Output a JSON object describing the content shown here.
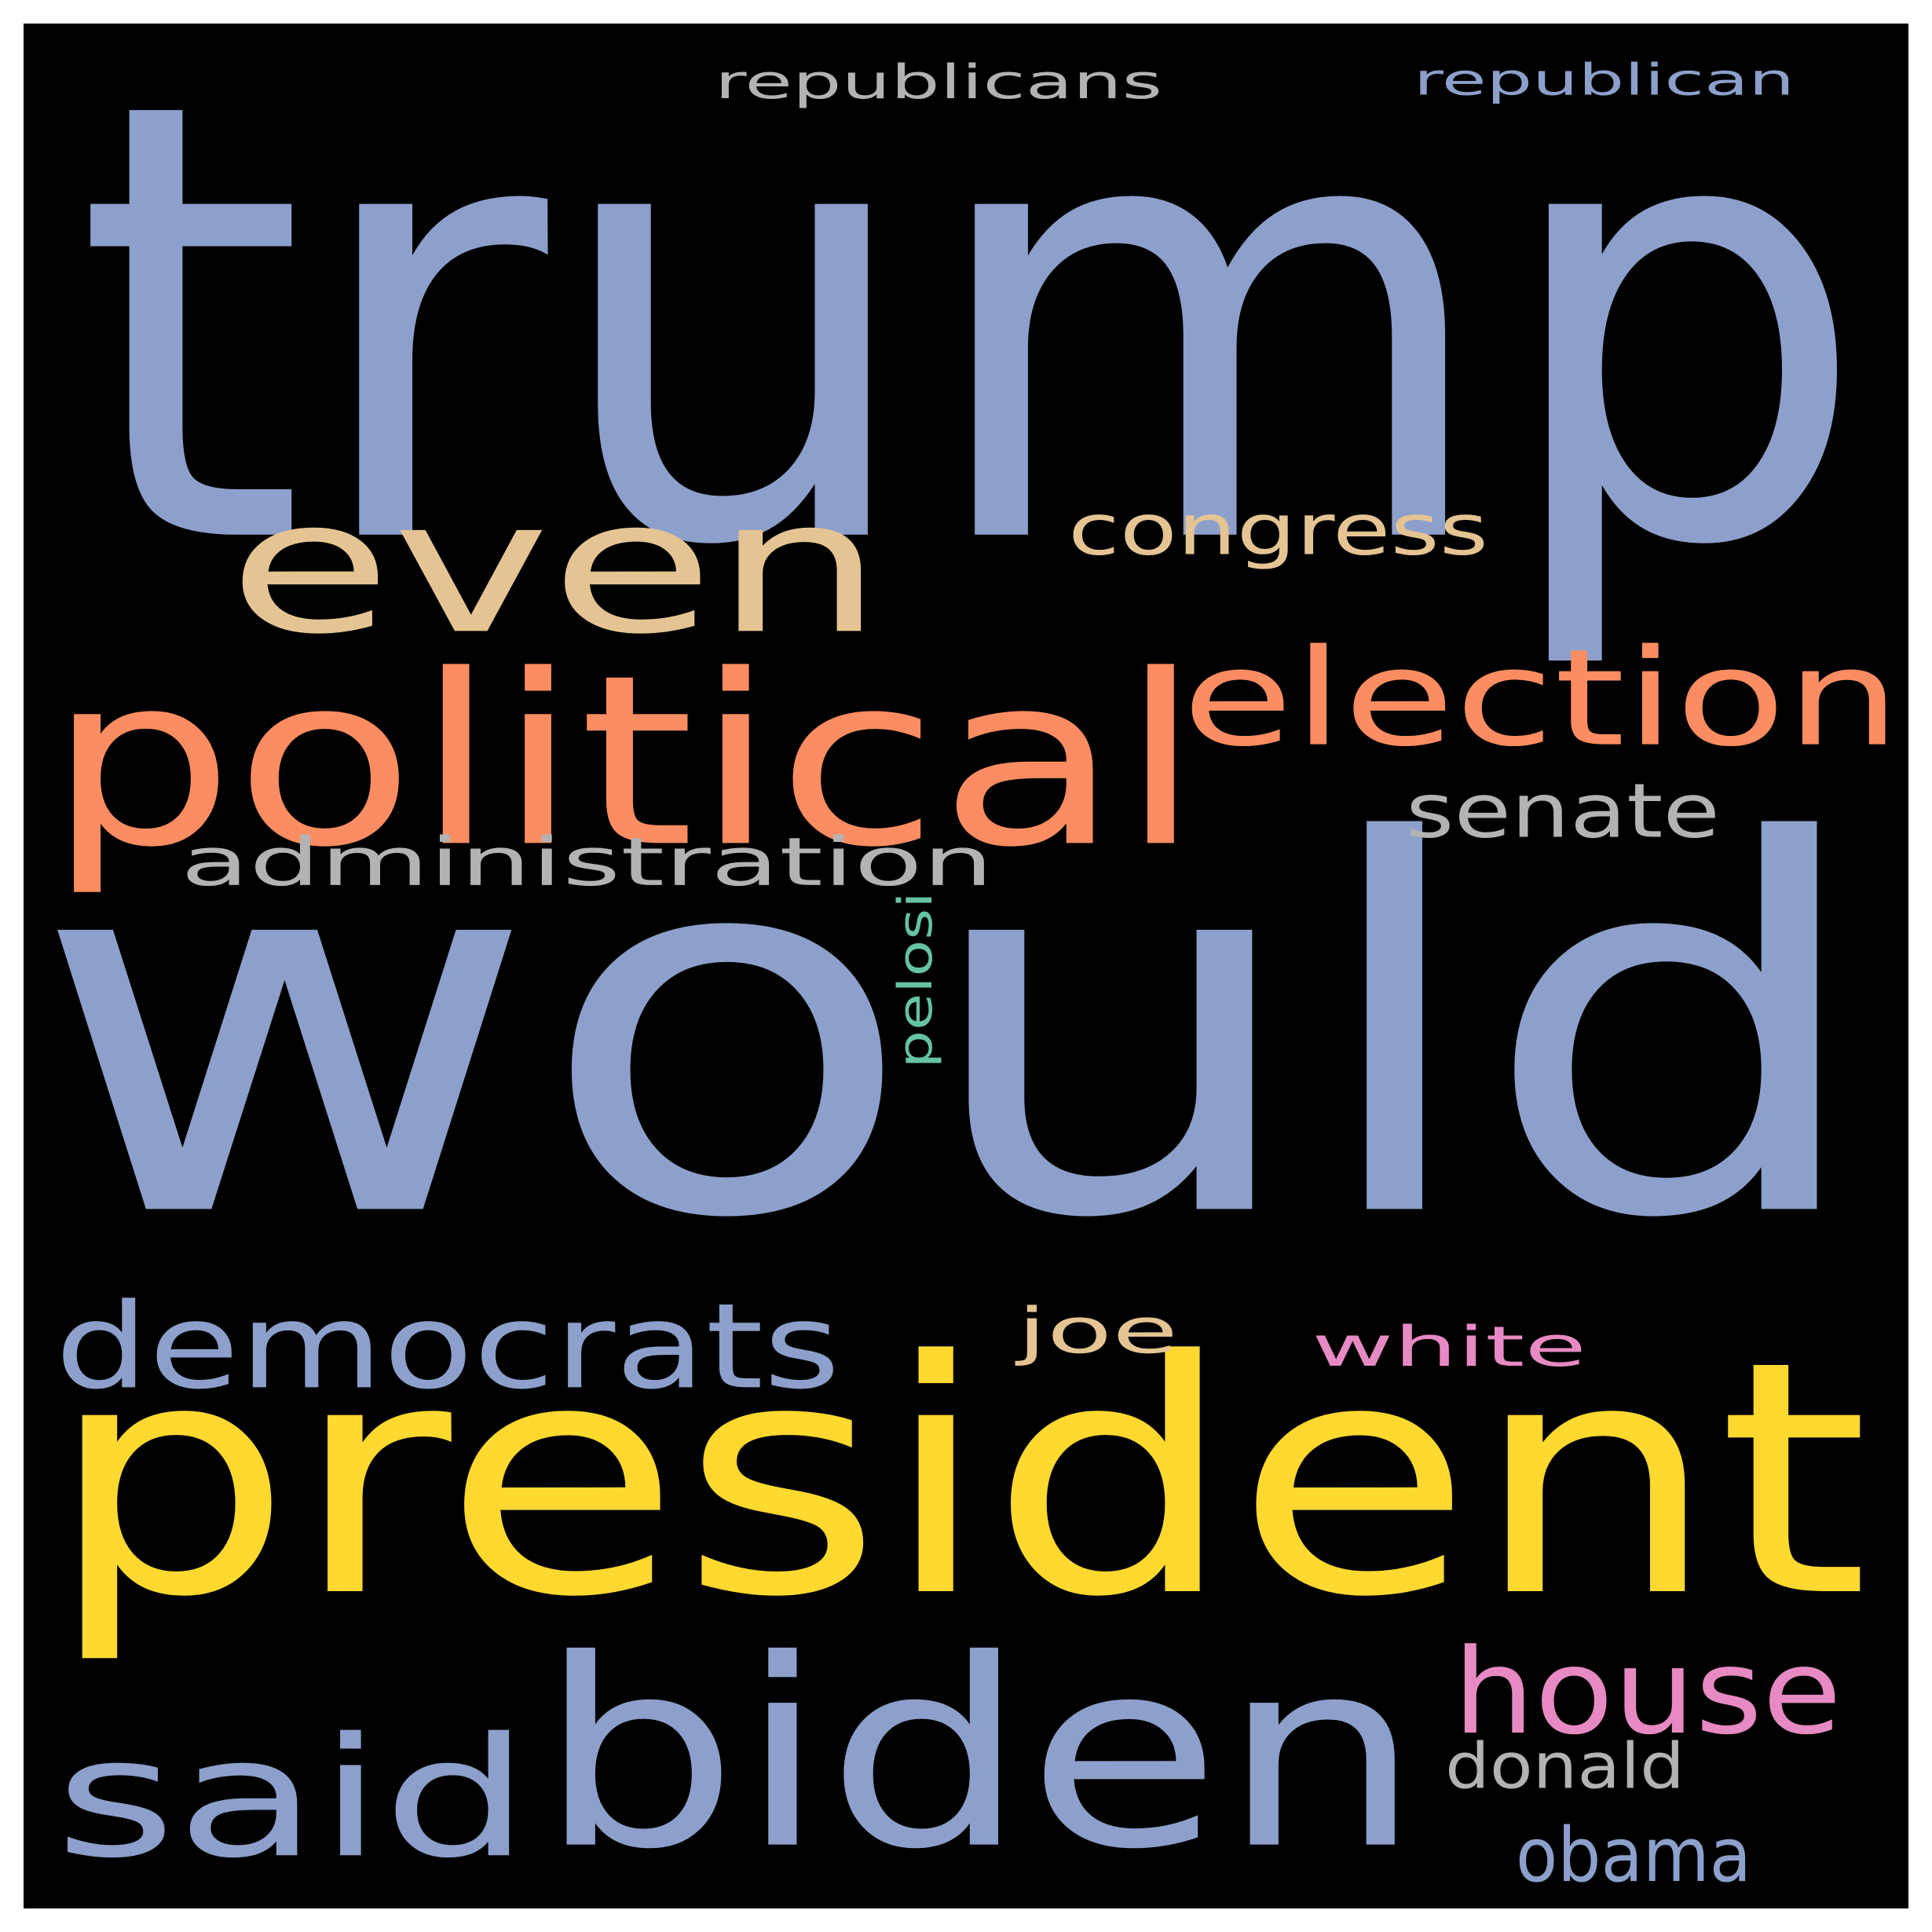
{
  "cloud": {
    "background": "#000000",
    "words": {
      "trump": {
        "text": "trump",
        "color": "#8da0cb"
      },
      "would": {
        "text": "would",
        "color": "#8da0cb"
      },
      "president": {
        "text": "president",
        "color": "#ffd92f"
      },
      "biden": {
        "text": "biden",
        "color": "#8da0cb"
      },
      "said": {
        "text": "said",
        "color": "#8da0cb"
      },
      "political": {
        "text": "political",
        "color": "#fc8d62"
      },
      "even": {
        "text": "even",
        "color": "#e5c494"
      },
      "election": {
        "text": "election",
        "color": "#fc8d62"
      },
      "democrats": {
        "text": "democrats",
        "color": "#8da0cb"
      },
      "house": {
        "text": "house",
        "color": "#e78ac3"
      },
      "administration": {
        "text": "administration",
        "color": "#b3b3b3"
      },
      "senate": {
        "text": "senate",
        "color": "#b3b3b3"
      },
      "congress": {
        "text": "congress",
        "color": "#e5c494"
      },
      "white": {
        "text": "white",
        "color": "#e78ac3"
      },
      "joe": {
        "text": "joe",
        "color": "#e5c494"
      },
      "obama": {
        "text": "obama",
        "color": "#8da0cb"
      },
      "donald": {
        "text": "donald",
        "color": "#b3b3b3"
      },
      "republicans": {
        "text": "republicans",
        "color": "#b3b3b3"
      },
      "republican": {
        "text": "republican",
        "color": "#8da0cb"
      },
      "pelosi": {
        "text": "pelosi",
        "color": "#66c2a5"
      }
    }
  }
}
